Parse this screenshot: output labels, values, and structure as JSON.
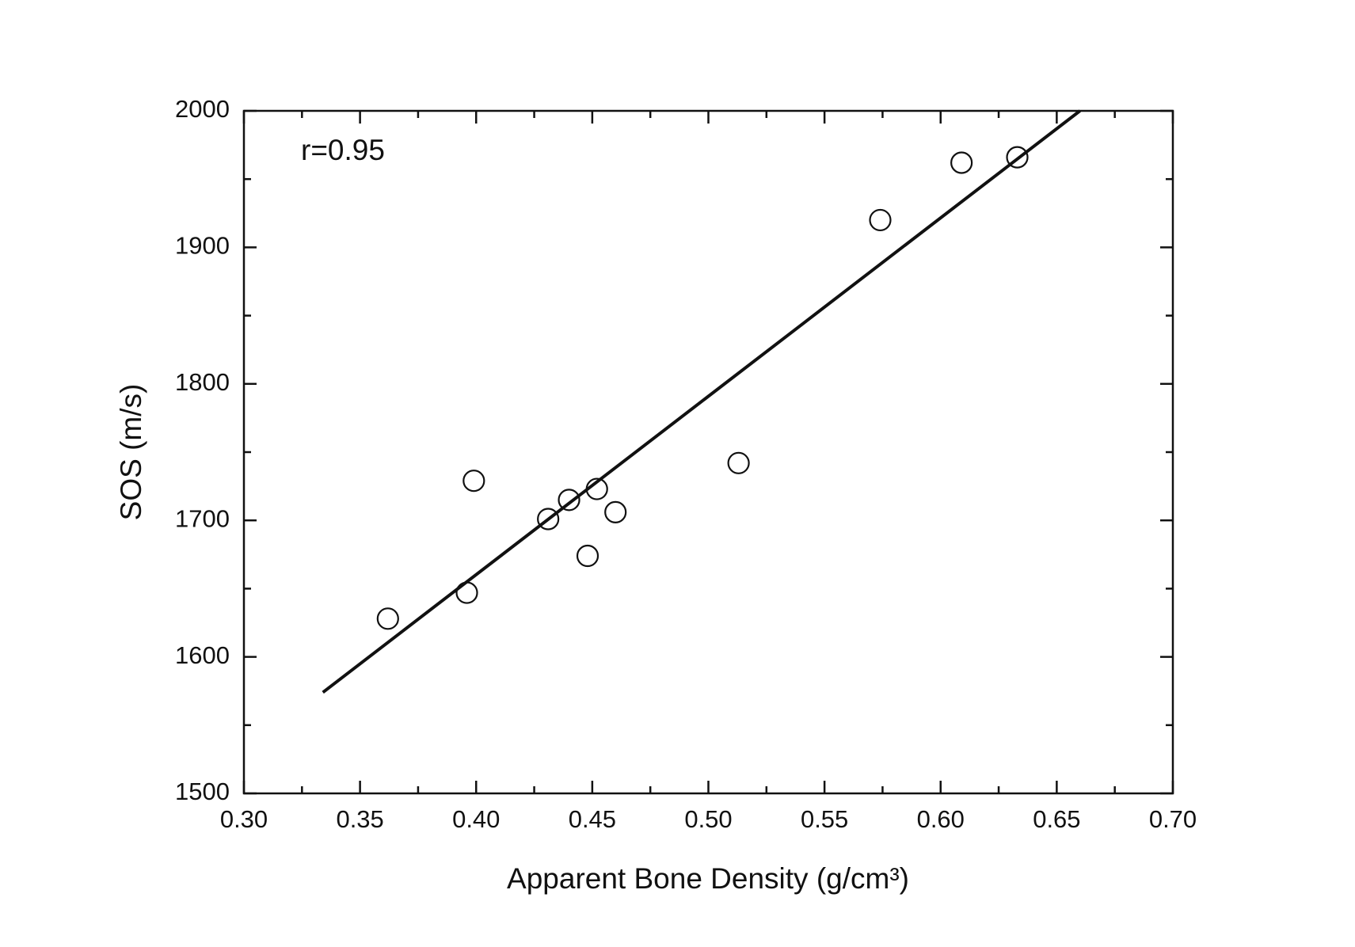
{
  "chart_data": {
    "type": "scatter",
    "x_label": "Apparent Bone Density (g/cm³)",
    "y_label": "SOS (m/s)",
    "annotation": "r=0.95",
    "x": [
      0.362,
      0.396,
      0.399,
      0.431,
      0.44,
      0.452,
      0.46,
      0.448,
      0.513,
      0.574,
      0.609,
      0.633
    ],
    "values": [
      1628,
      1647,
      1729,
      1701,
      1715,
      1723,
      1706,
      1674,
      1742,
      1920,
      1962,
      1966
    ],
    "color": "#111111",
    "fit_line": {
      "x": [
        0.334,
        0.66
      ],
      "y": [
        1574,
        2000
      ]
    },
    "xlim": [
      0.3,
      0.7
    ],
    "ylim": [
      1500,
      2000
    ],
    "xticks": [
      {
        "value": 0.3,
        "label": "0.30"
      },
      0.35,
      {
        "value": 0.4,
        "label": "0.40"
      },
      0.45,
      {
        "value": 0.5,
        "label": "0.50"
      },
      0.55,
      {
        "value": 0.6,
        "label": "0.60"
      },
      0.65,
      {
        "value": 0.7,
        "label": "0.70"
      }
    ],
    "xminorticks": [
      0.325,
      0.375,
      0.425,
      0.475,
      0.525,
      0.575,
      0.625,
      0.675
    ],
    "yticks": [
      1500,
      1600,
      1700,
      1800,
      1900,
      2000
    ],
    "yminorticks": [
      1550,
      1650,
      1750,
      1850,
      1950
    ],
    "grid": false
  }
}
